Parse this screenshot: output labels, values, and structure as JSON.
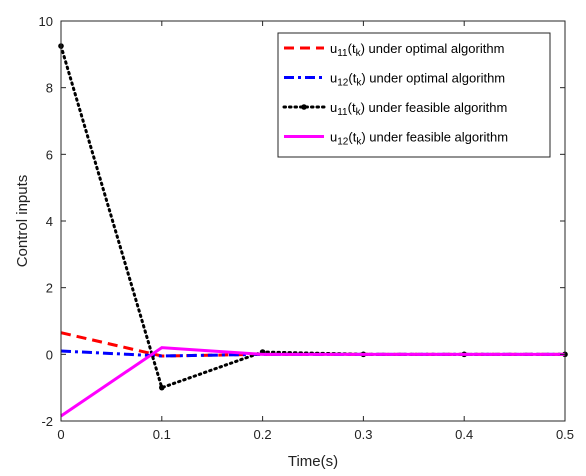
{
  "chart_data": {
    "type": "line",
    "xlabel": "Time(s)",
    "ylabel": "Control inputs",
    "xlim": [
      0,
      0.5
    ],
    "ylim": [
      -2,
      10
    ],
    "xticks": [
      0,
      0.1,
      0.2,
      0.3,
      0.4,
      0.5
    ],
    "xtick_labels": [
      "0",
      "0.1",
      "0.2",
      "0.3",
      "0.4",
      "0.5"
    ],
    "yticks": [
      -2,
      0,
      2,
      4,
      6,
      8,
      10
    ],
    "ytick_labels": [
      "-2",
      "0",
      "2",
      "4",
      "6",
      "8",
      "10"
    ],
    "grid": false,
    "legend_position": "top-right",
    "series": [
      {
        "legend": {
          "var": "u",
          "var_sub": "11",
          "arg": "t",
          "arg_sub": "k",
          "suffix": "under optimal algorithm"
        },
        "color": "#ff0000",
        "style": "dashed",
        "marker": "none",
        "x": [
          0,
          0.1,
          0.2,
          0.3,
          0.4,
          0.5
        ],
        "y": [
          0.65,
          -0.05,
          0.0,
          0.0,
          0.0,
          0.0
        ]
      },
      {
        "legend": {
          "var": "u",
          "var_sub": "12",
          "arg": "t",
          "arg_sub": "k",
          "suffix": "under optimal algorithm"
        },
        "color": "#0000ff",
        "style": "dashdot",
        "marker": "none",
        "x": [
          0,
          0.1,
          0.2,
          0.3,
          0.4,
          0.5
        ],
        "y": [
          0.1,
          -0.05,
          0.0,
          0.0,
          0.0,
          0.0
        ]
      },
      {
        "legend": {
          "var": "u",
          "var_sub": "11",
          "arg": "t",
          "arg_sub": "k",
          "suffix": "under feasible algorithm"
        },
        "color": "#000000",
        "style": "dotted",
        "marker": "dot",
        "x": [
          0,
          0.1,
          0.2,
          0.3,
          0.4,
          0.5
        ],
        "y": [
          9.25,
          -1.0,
          0.07,
          0.0,
          0.0,
          0.0
        ]
      },
      {
        "legend": {
          "var": "u",
          "var_sub": "12",
          "arg": "t",
          "arg_sub": "k",
          "suffix": "under feasible algorithm"
        },
        "color": "#ff00ff",
        "style": "solid",
        "marker": "none",
        "x": [
          0,
          0.1,
          0.2,
          0.3,
          0.4,
          0.5
        ],
        "y": [
          -1.85,
          0.2,
          0.0,
          0.0,
          0.0,
          0.0
        ]
      }
    ]
  }
}
